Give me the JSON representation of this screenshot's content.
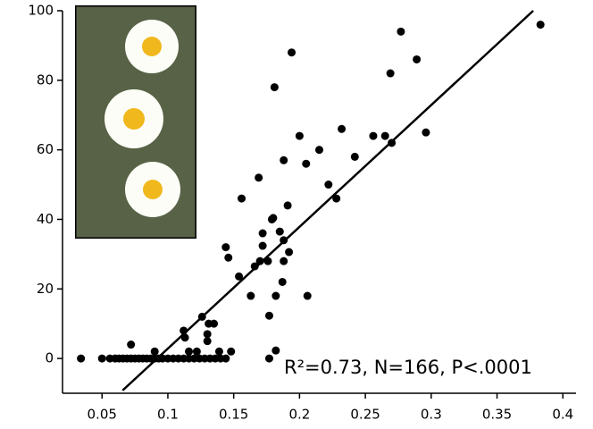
{
  "chart_data": {
    "type": "scatter",
    "x": [
      0.034,
      0.05,
      0.056,
      0.06,
      0.063,
      0.066,
      0.069,
      0.072,
      0.075,
      0.078,
      0.081,
      0.084,
      0.087,
      0.09,
      0.093,
      0.096,
      0.1,
      0.104,
      0.108,
      0.112,
      0.116,
      0.12,
      0.124,
      0.128,
      0.132,
      0.136,
      0.14,
      0.144,
      0.072,
      0.09,
      0.126,
      0.112,
      0.113,
      0.131,
      0.135,
      0.13,
      0.13,
      0.139,
      0.148,
      0.122,
      0.116,
      0.144,
      0.146,
      0.154,
      0.156,
      0.163,
      0.166,
      0.169,
      0.17,
      0.172,
      0.172,
      0.176,
      0.177,
      0.179,
      0.18,
      0.181,
      0.182,
      0.182,
      0.177,
      0.185,
      0.187,
      0.188,
      0.188,
      0.188,
      0.191,
      0.192,
      0.194,
      0.2,
      0.205,
      0.206,
      0.215,
      0.222,
      0.228,
      0.232,
      0.242,
      0.256,
      0.265,
      0.269,
      0.27,
      0.277,
      0.289,
      0.296,
      0.383
    ],
    "values": [
      0,
      0,
      0,
      0,
      0,
      0,
      0,
      0,
      0,
      0,
      0,
      0,
      0,
      0,
      0,
      0,
      0,
      0,
      0,
      0,
      0,
      0,
      0,
      0,
      0,
      0,
      0,
      0,
      4,
      2,
      12,
      8,
      6,
      10,
      10,
      5,
      7,
      2,
      2,
      2,
      2,
      32,
      29,
      23.6,
      46,
      18,
      26.5,
      52,
      28,
      32.4,
      36,
      28,
      12.3,
      40,
      40.4,
      78,
      18,
      2.3,
      0,
      36.5,
      22,
      57,
      28,
      34,
      44,
      30.6,
      88,
      64,
      56,
      18,
      60,
      50,
      46,
      66,
      58,
      64,
      64,
      82,
      62,
      94,
      86,
      65,
      96
    ],
    "color": "#000000",
    "fit_line": {
      "x": [
        0.0656,
        0.3775
      ],
      "y": [
        -9.2,
        100
      ]
    },
    "annotation": "R²=0.73, N=166, P<.0001",
    "xlim": [
      0.02,
      0.41
    ],
    "xticks": [
      0.05,
      0.1,
      0.15,
      0.2,
      0.25,
      0.3,
      0.35,
      0.4
    ],
    "ylim": [
      -10,
      100
    ],
    "yticks": [
      0,
      20,
      40,
      60,
      80,
      100
    ]
  }
}
